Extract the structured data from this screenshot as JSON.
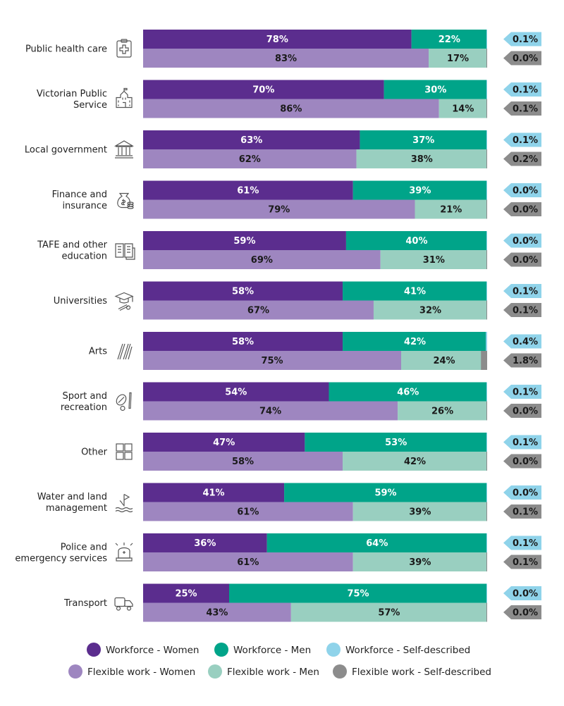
{
  "chart_data": {
    "type": "bar",
    "orientation": "horizontal",
    "stacked": true,
    "title": "",
    "xlabel": "",
    "ylabel": "",
    "xlim": [
      0,
      100
    ],
    "grid": false,
    "legend_position": "bottom",
    "categories": [
      "Public health care",
      "Victorian Public Service",
      "Local government",
      "Finance and insurance",
      "TAFE and other education",
      "Universities",
      "Arts",
      "Sport and recreation",
      "Other",
      "Water and land management",
      "Police and emergency services",
      "Transport"
    ],
    "category_lines": [
      [
        "Public health care"
      ],
      [
        "Victorian Public",
        "Service"
      ],
      [
        "Local government"
      ],
      [
        "Finance and",
        "insurance"
      ],
      [
        "TAFE and other",
        "education"
      ],
      [
        "Universities"
      ],
      [
        "Arts"
      ],
      [
        "Sport and",
        "recreation"
      ],
      [
        "Other"
      ],
      [
        "Water and land",
        "management"
      ],
      [
        "Police and",
        "emergency services"
      ],
      [
        "Transport"
      ]
    ],
    "category_icons": [
      "medical-clipboard-icon",
      "government-building-icon",
      "columns-building-icon",
      "money-bag-coins-icon",
      "books-icon",
      "graduation-cap-diploma-icon",
      "paintbrushes-icon",
      "sports-ball-bat-icon",
      "grid-squares-icon",
      "flag-water-icon",
      "emergency-siren-icon",
      "truck-icon"
    ],
    "series": [
      {
        "name": "Workforce - Women",
        "group": "Workforce",
        "color": "#5b2d8e",
        "label_color": "#ffffff",
        "values": [
          78,
          70,
          63,
          61,
          59,
          58,
          58,
          54,
          47,
          41,
          36,
          25
        ]
      },
      {
        "name": "Workforce - Men",
        "group": "Workforce",
        "color": "#00a489",
        "label_color": "#ffffff",
        "values": [
          22,
          30,
          37,
          39,
          40,
          41,
          42,
          46,
          53,
          59,
          64,
          75
        ]
      },
      {
        "name": "Workforce - Self-described",
        "group": "Workforce",
        "color": "#8fd3ea",
        "values": [
          0.1,
          0.1,
          0.1,
          0.0,
          0.0,
          0.1,
          0.4,
          0.1,
          0.1,
          0.0,
          0.1,
          0.0
        ]
      },
      {
        "name": "Flexible work - Women",
        "group": "Flexible work",
        "color": "#9e86c0",
        "label_color": "#1a1a1a",
        "values": [
          83,
          86,
          62,
          79,
          69,
          67,
          75,
          74,
          58,
          61,
          61,
          43
        ]
      },
      {
        "name": "Flexible work - Men",
        "group": "Flexible work",
        "color": "#99cfc0",
        "label_color": "#1a1a1a",
        "values": [
          17,
          14,
          38,
          21,
          31,
          32,
          24,
          26,
          42,
          39,
          39,
          57
        ]
      },
      {
        "name": "Flexible work - Self-described",
        "group": "Flexible work",
        "color": "#8c8c8c",
        "values": [
          0.0,
          0.1,
          0.2,
          0.0,
          0.0,
          0.1,
          1.8,
          0.0,
          0.0,
          0.1,
          0.1,
          0.0
        ]
      }
    ],
    "value_labels": {
      "Workforce - Women": [
        "78%",
        "70%",
        "63%",
        "61%",
        "59%",
        "58%",
        "58%",
        "54%",
        "47%",
        "41%",
        "36%",
        "25%"
      ],
      "Workforce - Men": [
        "22%",
        "30%",
        "37%",
        "39%",
        "40%",
        "41%",
        "42%",
        "46%",
        "53%",
        "59%",
        "64%",
        "75%"
      ],
      "Workforce - Self-described": [
        "0.1%",
        "0.1%",
        "0.1%",
        "0.0%",
        "0.0%",
        "0.1%",
        "0.4%",
        "0.1%",
        "0.1%",
        "0.0%",
        "0.1%",
        "0.0%"
      ],
      "Flexible work - Women": [
        "83%",
        "86%",
        "62%",
        "79%",
        "69%",
        "67%",
        "75%",
        "74%",
        "58%",
        "61%",
        "61%",
        "43%"
      ],
      "Flexible work - Men": [
        "17%",
        "14%",
        "38%",
        "21%",
        "31%",
        "32%",
        "24%",
        "26%",
        "42%",
        "39%",
        "39%",
        "57%"
      ],
      "Flexible work - Self-described": [
        "0.0%",
        "0.1%",
        "0.2%",
        "0.0%",
        "0.0%",
        "0.1%",
        "1.8%",
        "0.0%",
        "0.0%",
        "0.1%",
        "0.1%",
        "0.0%"
      ]
    }
  }
}
